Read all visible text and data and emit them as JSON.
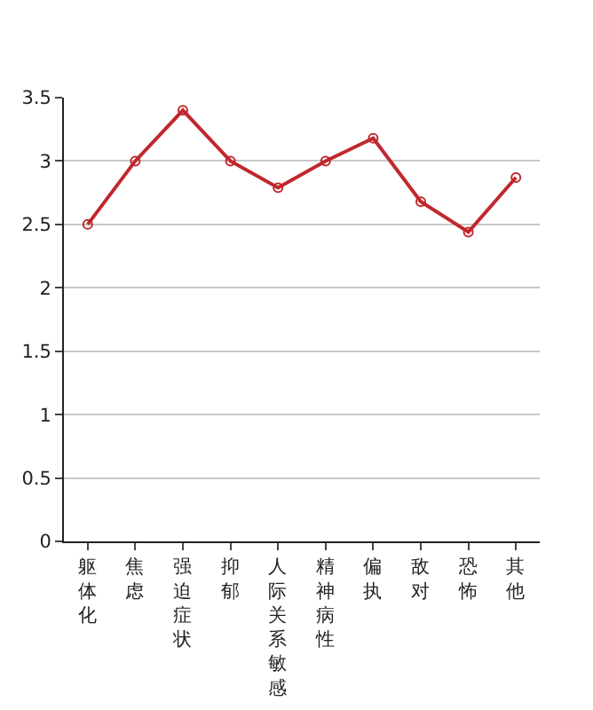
{
  "chart_data": {
    "type": "line",
    "categories": [
      "躯体化",
      "焦虑",
      "强迫症状",
      "抑郁",
      "人际关系敏感",
      "精神病性",
      "偏执",
      "敌对",
      "恐怖",
      "其他"
    ],
    "series": [
      {
        "color": "#c0282d",
        "values": [
          2.5,
          3.0,
          3.4,
          3.0,
          2.79,
          3.0,
          3.18,
          2.68,
          2.44,
          2.87
        ]
      }
    ],
    "ylim": [
      0,
      3.5
    ],
    "yticks": [
      0,
      0.5,
      1,
      1.5,
      2,
      2.5,
      3,
      3.5
    ],
    "grid": "y",
    "marker": "circle",
    "line_style": "solid"
  }
}
